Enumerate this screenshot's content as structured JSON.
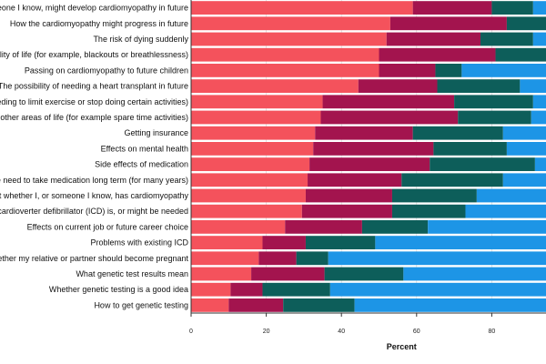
{
  "chart_data": {
    "type": "bar",
    "orientation": "horizontal",
    "stacked": true,
    "xlabel": "Percent",
    "xlim": [
      0,
      100
    ],
    "xticks": [
      0,
      20,
      40,
      60,
      80
    ],
    "xtick_labels": [
      "0",
      "20",
      "40",
      "60",
      "80"
    ],
    "grid": false,
    "categories": [
      "...of someone I know, might develop cardiomyopathy in future",
      "How the cardiomyopathy might progress in future",
      "The risk of dying suddenly",
      "...with quality of life (for example, blackouts or breathlessness)",
      "Passing on cardiomyopathy to future children",
      "The possibility of needing a heart transplant in future",
      "...le, needing to limit exercise or stop doing certain activities)",
      "...ects on other areas of life (for example spare time activities)",
      "Getting insurance",
      "Effects on mental health",
      "Side effects of medication",
      "The need to take medication long term (for many years)",
      "...ty about whether I, or someone I know, has cardiomyopathy",
      "...ntable cardioverter defibrillator (ICD) is, or might be needed",
      "Effects on current job or future career choice",
      "Problems with existing ICD",
      "...) or whether my relative or partner should become pregnant",
      "What genetic test results mean",
      "Whether genetic testing is a good idea",
      "How to get genetic testing"
    ],
    "series": [
      {
        "color": "#f4525c",
        "values": [
          59,
          53,
          52,
          50,
          50,
          44.5,
          35,
          34.5,
          33,
          32.5,
          31.5,
          31,
          30.5,
          29.5,
          25,
          19,
          18,
          16,
          10.5,
          10
        ]
      },
      {
        "color": "#a3144e",
        "values": [
          21,
          31,
          25,
          31,
          15,
          21,
          35,
          36.5,
          26,
          32,
          32,
          25,
          23,
          24,
          20.5,
          11.5,
          10,
          19.5,
          8.5,
          14.5
        ]
      },
      {
        "color": "#0d5e5a",
        "values": [
          11,
          11,
          14,
          19,
          7,
          22,
          21,
          19.5,
          24,
          19.5,
          28,
          27,
          22.5,
          19.5,
          17.5,
          18.5,
          8.5,
          21,
          18,
          19
        ]
      },
      {
        "color": "#1d95e6",
        "values": [
          9,
          5,
          9,
          0,
          28,
          12.5,
          9,
          9.5,
          17,
          16,
          8.5,
          17,
          24,
          27,
          37,
          51,
          63.5,
          43.5,
          63,
          56.5
        ]
      }
    ]
  }
}
